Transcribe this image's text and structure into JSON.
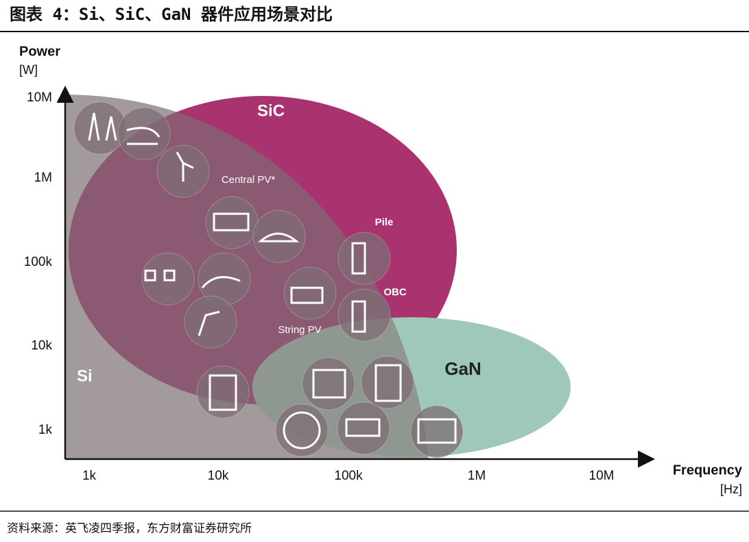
{
  "header": {
    "title": "图表 4：Si、SiC、GaN 器件应用场景对比"
  },
  "diagram": {
    "y_axis": {
      "title": "Power",
      "unit": "[W]",
      "labels": [
        "10M",
        "1M",
        "100k",
        "10k",
        "1k"
      ]
    },
    "x_axis": {
      "title": "Frequency",
      "unit": "[Hz]",
      "labels": [
        "1k",
        "10k",
        "100k",
        "1M",
        "10M"
      ]
    },
    "regions": [
      {
        "label": "Si"
      },
      {
        "label": "SiC"
      },
      {
        "label": "GaN"
      }
    ],
    "annotations": [
      "Central PV*",
      "Pile",
      "OBC",
      "String PV"
    ]
  },
  "footer": {
    "source": "资料来源：英飞凌四季报，东方财富证券研究所"
  }
}
